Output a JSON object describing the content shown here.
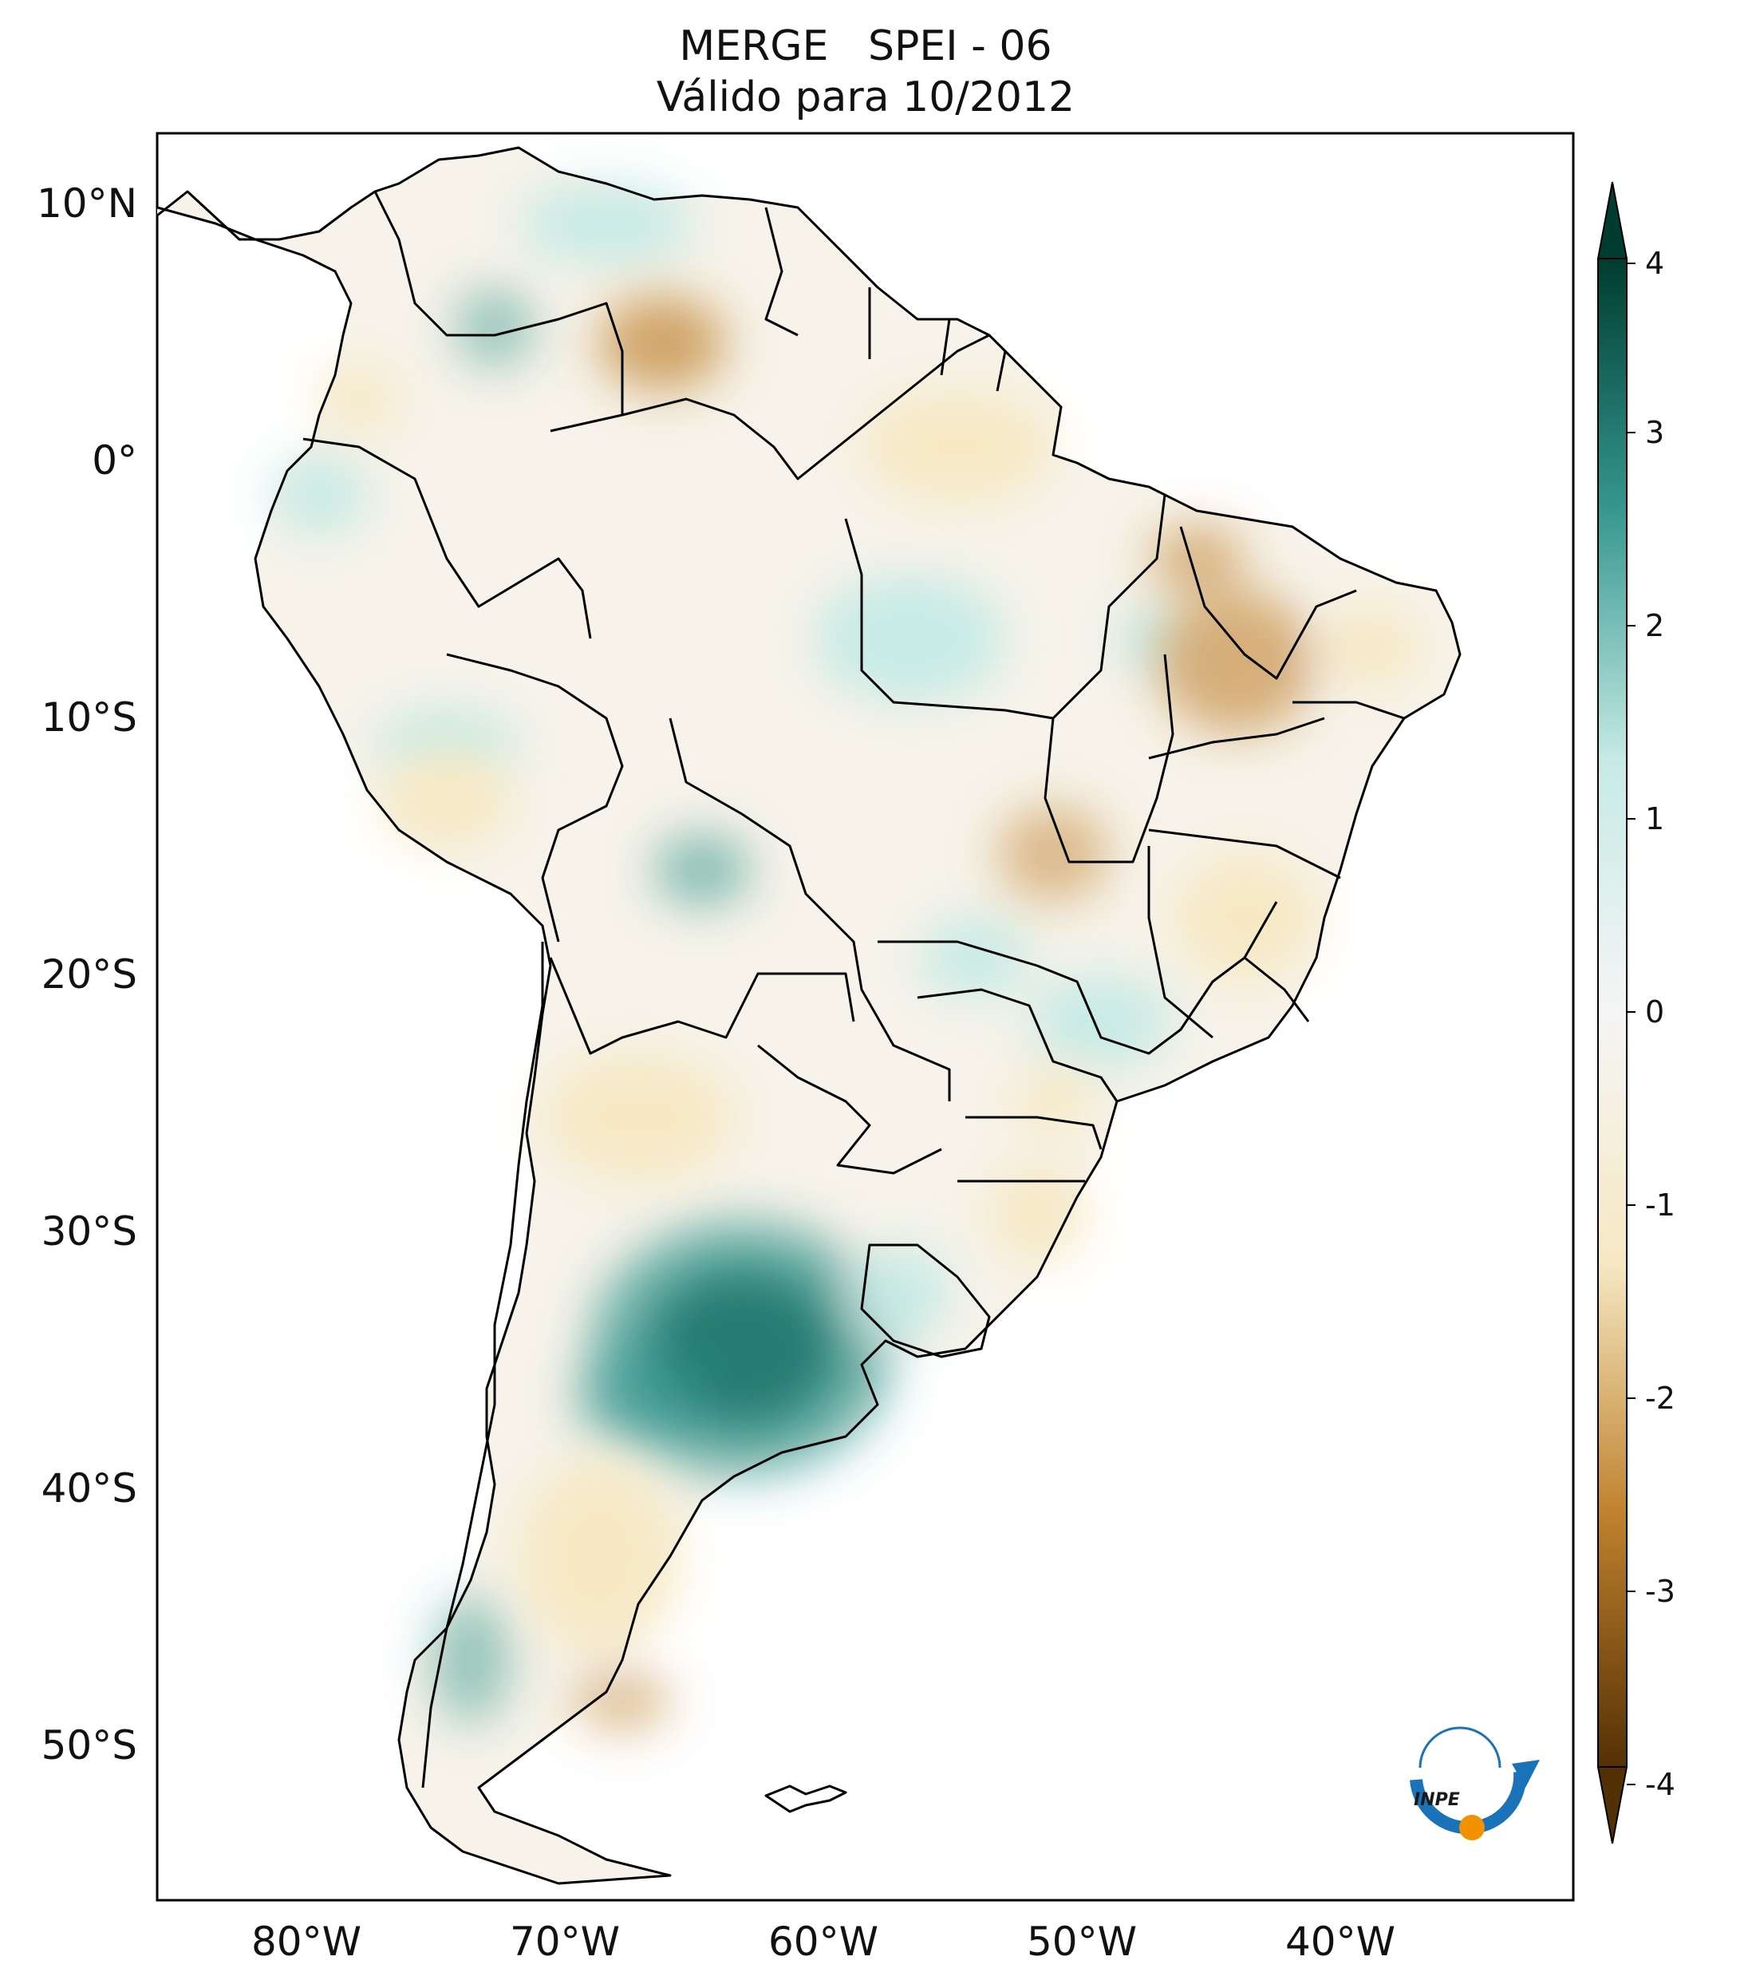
{
  "title": {
    "line1": "MERGE   SPEI - 06",
    "line2": "Válido para 10/2012"
  },
  "axes": {
    "lat_labels": [
      "10°N",
      "0°",
      "10°S",
      "20°S",
      "30°S",
      "40°S",
      "50°S"
    ],
    "lat_values": [
      10,
      0,
      -10,
      -20,
      -30,
      -40,
      -50
    ],
    "lon_labels": [
      "80°W",
      "70°W",
      "60°W",
      "50°W",
      "40°W"
    ],
    "lon_values": [
      -80,
      -70,
      -60,
      -50,
      -40
    ],
    "lon_range": [
      -85,
      -30
    ],
    "lat_range": [
      -56,
      13
    ]
  },
  "colorbar": {
    "tick_labels": [
      "4",
      "3",
      "2",
      "1",
      "0",
      "-1",
      "-2",
      "-3",
      "-4"
    ],
    "range": [
      -4,
      4
    ],
    "extend": "both",
    "colormap": "BrBG",
    "colors": {
      "dry_extreme": "#543005",
      "dry_mid": "#bf812d",
      "dry_light": "#f6e8c3",
      "neutral": "#f5f5f5",
      "wet_light": "#c7eae5",
      "wet_mid": "#35978f",
      "wet_extreme": "#003c30"
    }
  },
  "logo": {
    "text": "INPE",
    "colors": {
      "arrow": "#1a73b8",
      "dot": "#f39200"
    }
  }
}
